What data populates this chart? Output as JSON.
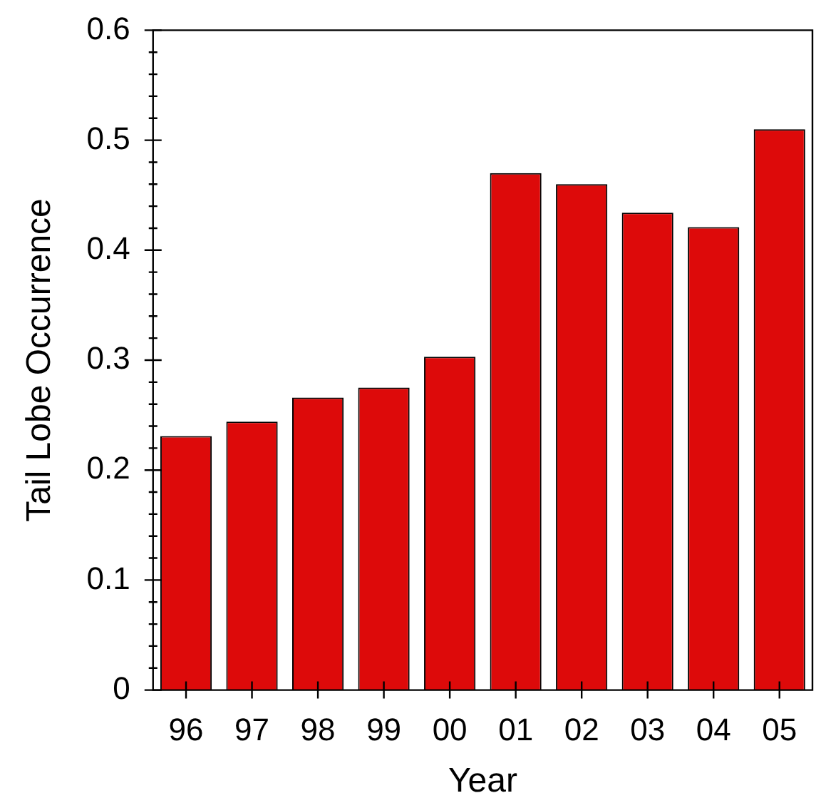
{
  "chart_data": {
    "type": "bar",
    "xlabel": "Year",
    "ylabel": "Tail Lobe Occurrence",
    "categories": [
      "96",
      "97",
      "98",
      "99",
      "00",
      "01",
      "02",
      "03",
      "04",
      "05"
    ],
    "values": [
      0.231,
      0.244,
      0.266,
      0.275,
      0.303,
      0.47,
      0.46,
      0.434,
      0.421,
      0.51
    ],
    "color": "#dd0a0a",
    "ylim": [
      0,
      0.6
    ],
    "yticks": [
      0,
      0.1,
      0.2,
      0.3,
      0.4,
      0.5,
      0.6
    ],
    "legend": false
  }
}
